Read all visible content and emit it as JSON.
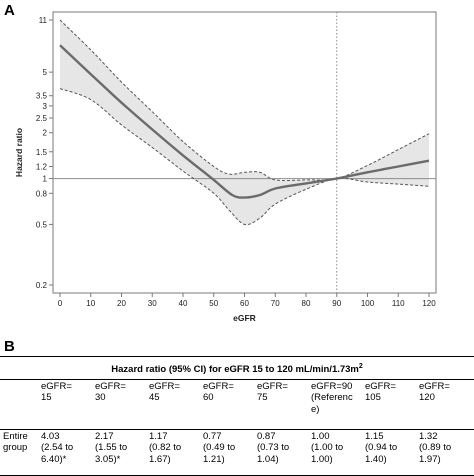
{
  "panelA": {
    "label": "A",
    "chart_data": {
      "type": "line",
      "xlabel": "eGFR",
      "ylabel": "Hazard ratio",
      "yscale": "log",
      "xlim": [
        0,
        120
      ],
      "ylim": [
        0.2,
        11
      ],
      "xticks": [
        "0",
        "10",
        "20",
        "30",
        "40",
        "50",
        "60",
        "70",
        "80",
        "90",
        "100",
        "110",
        "120"
      ],
      "yticks": [
        "11",
        "5",
        "3.5",
        "3",
        "2.5",
        "2",
        "1.5",
        "1.2",
        "1",
        "0.8",
        "0.5",
        "0.2"
      ],
      "reference_line_y": 1,
      "reference_line_x": 90,
      "series": [
        {
          "role": "estimate",
          "x": [
            0,
            10,
            20,
            30,
            40,
            50,
            56,
            60,
            65,
            70,
            80,
            90,
            100,
            110,
            120
          ],
          "y": [
            7.5,
            4.85,
            3.15,
            2.1,
            1.42,
            0.98,
            0.78,
            0.75,
            0.78,
            0.86,
            0.93,
            1.0,
            1.1,
            1.2,
            1.31
          ]
        },
        {
          "role": "upper_ci",
          "x": [
            0,
            10,
            20,
            30,
            40,
            50,
            55,
            60,
            65,
            70,
            80,
            90,
            100,
            110,
            120
          ],
          "y": [
            11,
            7.0,
            4.3,
            2.75,
            1.75,
            1.2,
            1.07,
            1.1,
            1.1,
            0.98,
            0.98,
            1.0,
            1.22,
            1.55,
            1.97
          ]
        },
        {
          "role": "lower_ci",
          "x": [
            0,
            10,
            20,
            30,
            40,
            50,
            55,
            60,
            65,
            70,
            80,
            90,
            100,
            110,
            120
          ],
          "y": [
            3.9,
            3.3,
            2.25,
            1.6,
            1.12,
            0.8,
            0.62,
            0.5,
            0.55,
            0.68,
            0.85,
            1.0,
            0.95,
            0.92,
            0.89
          ]
        }
      ]
    }
  },
  "panelB": {
    "label": "B",
    "table_title_prefix": "Hazard ratio (95% CI) for eGFR  15 to 120 mL/min/1.73m",
    "table_title_sup": "2",
    "headers": [
      "",
      "eGFR=\n15",
      "eGFR=\n30",
      "eGFR=\n45",
      "eGFR=\n60",
      "eGFR=\n75",
      "eGFR=90\n(Referenc\ne)",
      "eGFR=\n105",
      "eGFR=\n120"
    ],
    "rows": [
      {
        "label": "Entire\ngroup",
        "cells": [
          "4.03\n(2.54 to\n6.40)*",
          "2.17\n(1.55 to\n3.05)*",
          "1.17\n(0.82 to\n1.67)",
          "0.77\n(0.49 to\n1.21)",
          "0.87\n(0.73 to\n1.04)",
          "1.00\n(1.00 to\n1.00)",
          "1.15\n(0.94 to\n1.40)",
          "1.32\n(0.89 to\n1.97)"
        ]
      }
    ]
  }
}
